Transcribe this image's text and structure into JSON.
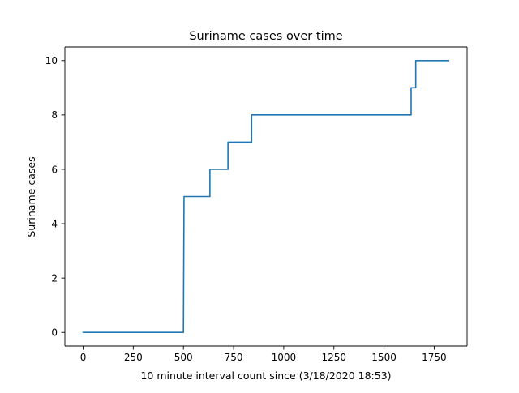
{
  "chart_data": {
    "type": "line",
    "title": "Suriname cases over time",
    "xlabel": "10 minute interval count since (3/18/2020 18:53)",
    "ylabel": "Suriname cases",
    "xlim": [
      -91,
      1914
    ],
    "ylim": [
      -0.5,
      10.5
    ],
    "xticks": [
      0,
      250,
      500,
      750,
      1000,
      1250,
      1500,
      1750
    ],
    "yticks": [
      0,
      2,
      4,
      6,
      8,
      10
    ],
    "grid": false,
    "legend": "none",
    "series": [
      {
        "color": "#1f77b4",
        "step": true,
        "points": [
          [
            0,
            0
          ],
          [
            500,
            0
          ],
          [
            503,
            5
          ],
          [
            632,
            5
          ],
          [
            632,
            6
          ],
          [
            722,
            6
          ],
          [
            722,
            7
          ],
          [
            840,
            7
          ],
          [
            840,
            8
          ],
          [
            1635,
            8
          ],
          [
            1635,
            9
          ],
          [
            1658,
            9
          ],
          [
            1658,
            10
          ],
          [
            1822,
            10
          ]
        ]
      }
    ]
  }
}
